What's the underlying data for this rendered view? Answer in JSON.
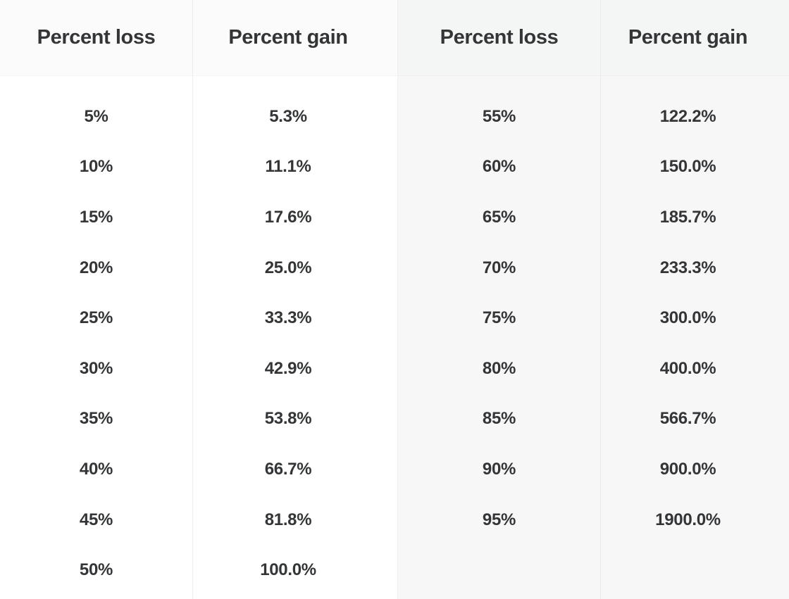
{
  "theme": {
    "text_color": "#333537",
    "header_bg_left": "#fbfbfb",
    "header_bg_right": "#f4f5f5",
    "body_bg_left": "#ffffff",
    "body_bg_right": "#f7f7f8",
    "divider_color": "#eaeaea"
  },
  "table": {
    "headers": [
      "Percent loss",
      "Percent gain",
      "Percent loss",
      "Percent gain"
    ],
    "rows": [
      [
        "5%",
        "5.3%",
        "55%",
        "122.2%"
      ],
      [
        "10%",
        "11.1%",
        "60%",
        "150.0%"
      ],
      [
        "15%",
        "17.6%",
        "65%",
        "185.7%"
      ],
      [
        "20%",
        "25.0%",
        "70%",
        "233.3%"
      ],
      [
        "25%",
        "33.3%",
        "75%",
        "300.0%"
      ],
      [
        "30%",
        "42.9%",
        "80%",
        "400.0%"
      ],
      [
        "35%",
        "53.8%",
        "85%",
        "566.7%"
      ],
      [
        "40%",
        "66.7%",
        "90%",
        "900.0%"
      ],
      [
        "45%",
        "81.8%",
        "95%",
        "1900.0%"
      ],
      [
        "50%",
        "100.0%",
        "",
        ""
      ]
    ]
  },
  "chart_data": {
    "type": "table",
    "title": "",
    "columns": [
      "Percent loss",
      "Percent gain",
      "Percent loss",
      "Percent gain"
    ],
    "series": [
      {
        "name": "Percent loss",
        "values": [
          5,
          10,
          15,
          20,
          25,
          30,
          35,
          40,
          45,
          50,
          55,
          60,
          65,
          70,
          75,
          80,
          85,
          90,
          95
        ]
      },
      {
        "name": "Percent gain",
        "values": [
          5.3,
          11.1,
          17.6,
          25.0,
          33.3,
          42.9,
          53.8,
          66.7,
          81.8,
          100.0,
          122.2,
          150.0,
          185.7,
          233.3,
          300.0,
          400.0,
          566.7,
          900.0,
          1900.0
        ]
      }
    ],
    "layout": "two side-by-side loss/gain column pairs; losses 5-50 in left pair on white, losses 55-95 in right pair on gray"
  }
}
